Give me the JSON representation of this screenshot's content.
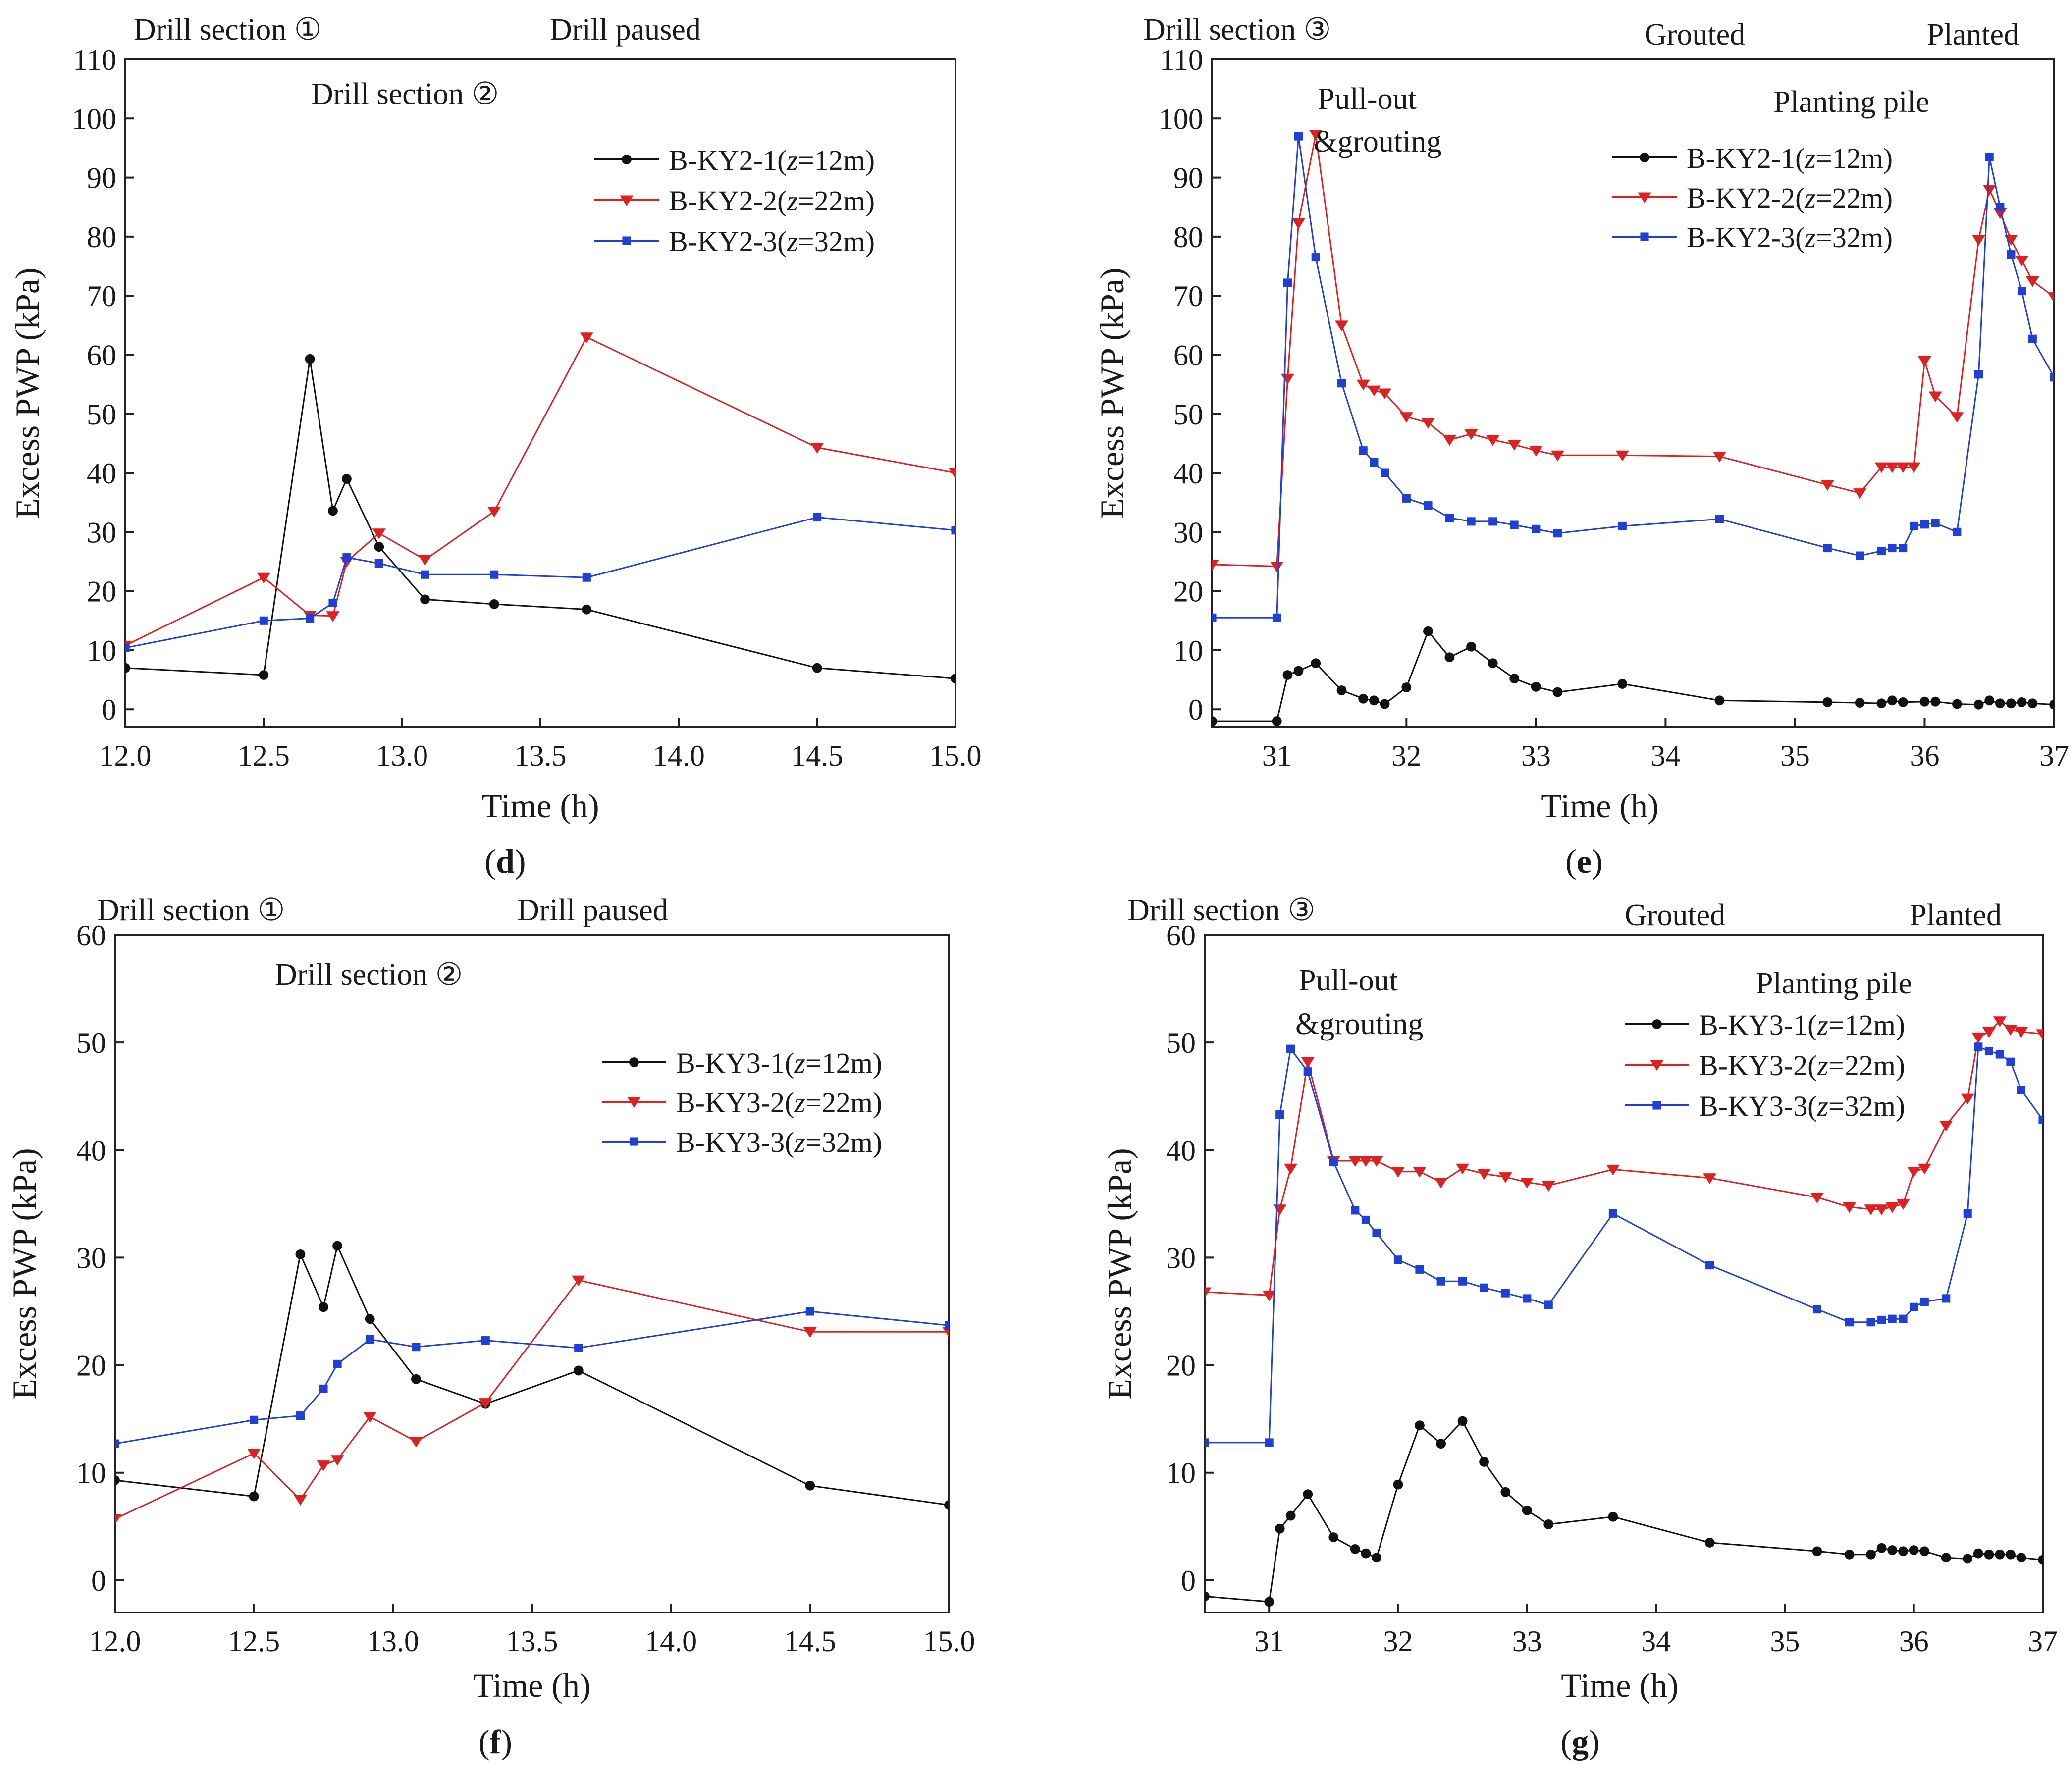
{
  "chart_data": [
    {
      "type": "line",
      "panel_label": "d",
      "xlabel": "Time (h)",
      "ylabel": "Excess PWP (kPa)",
      "xlim": [
        12.0,
        15.0
      ],
      "ylim": [
        -3,
        110
      ],
      "xticks": [
        "12.0",
        "12.5",
        "13.0",
        "13.5",
        "14.0",
        "14.5",
        "15.0"
      ],
      "yticks": [
        "0",
        "10",
        "20",
        "30",
        "40",
        "50",
        "60",
        "70",
        "80",
        "90",
        "100",
        "110"
      ],
      "annotations": [
        "Drill section ①",
        "Drill paused",
        "Drill section ②"
      ],
      "legend_position": "upper-right",
      "series": [
        {
          "name": "B-KY2-1",
          "depth_label": "z",
          "depth_value": "=12m",
          "color": "#111111",
          "marker": "circle",
          "x": [
            12.0,
            12.5,
            12.667,
            12.75,
            12.8,
            12.917,
            13.083,
            13.333,
            13.667,
            14.5,
            15.0
          ],
          "y": [
            7.0,
            5.8,
            59.3,
            33.6,
            39.0,
            27.5,
            18.6,
            17.8,
            16.9,
            7.0,
            5.2
          ]
        },
        {
          "name": "B-KY2-2",
          "depth_label": "z",
          "depth_value": "=22m",
          "color": "#e02020",
          "marker": "triangle-down",
          "x": [
            12.0,
            12.5,
            12.667,
            12.75,
            12.8,
            12.917,
            13.083,
            13.333,
            13.667,
            14.5,
            15.0
          ],
          "y": [
            10.8,
            22.3,
            15.9,
            15.8,
            25.0,
            29.8,
            25.3,
            33.5,
            63.0,
            44.3,
            40.0
          ]
        },
        {
          "name": "B-KY2-3",
          "depth_label": "z",
          "depth_value": "=32m",
          "color": "#1f3fd6",
          "marker": "square",
          "x": [
            12.0,
            12.5,
            12.667,
            12.75,
            12.8,
            12.917,
            13.083,
            13.333,
            13.667,
            14.5,
            15.0
          ],
          "y": [
            10.4,
            15.0,
            15.4,
            18.0,
            25.7,
            24.7,
            22.8,
            22.8,
            22.3,
            32.5,
            30.3
          ]
        }
      ]
    },
    {
      "type": "line",
      "panel_label": "e",
      "xlabel": "Time (h)",
      "ylabel": "Excess PWP (kPa)",
      "xlim": [
        30.5,
        37.0
      ],
      "ylim": [
        -3,
        110
      ],
      "xticks": [
        "31",
        "32",
        "33",
        "34",
        "35",
        "36",
        "37"
      ],
      "yticks": [
        "0",
        "10",
        "20",
        "30",
        "40",
        "50",
        "60",
        "70",
        "80",
        "90",
        "100",
        "110"
      ],
      "annotations": [
        "Drill section ③",
        "Grouted",
        "Planted",
        "Pull-out",
        "&grouting",
        "Planting pile"
      ],
      "legend_position": "upper-right",
      "series": [
        {
          "name": "B-KY2-1",
          "depth_label": "z",
          "depth_value": "=12m",
          "color": "#111111",
          "marker": "circle",
          "x": [
            30.5,
            31.0,
            31.083,
            31.167,
            31.3,
            31.5,
            31.667,
            31.75,
            31.833,
            32.0,
            32.167,
            32.333,
            32.5,
            32.667,
            32.833,
            33.0,
            33.167,
            33.667,
            34.417,
            35.25,
            35.5,
            35.667,
            35.75,
            35.833,
            36.0,
            36.083,
            36.25,
            36.417,
            36.5,
            36.583,
            36.667,
            36.75,
            36.833,
            37.0
          ],
          "y": [
            -2.0,
            -2.0,
            5.8,
            6.5,
            7.8,
            3.2,
            1.8,
            1.5,
            0.9,
            3.7,
            13.2,
            8.8,
            10.6,
            7.8,
            5.2,
            3.8,
            2.9,
            4.3,
            1.5,
            1.2,
            1.1,
            1.0,
            1.5,
            1.2,
            1.3,
            1.3,
            0.9,
            0.8,
            1.5,
            1.0,
            1.0,
            1.2,
            1.0,
            0.8
          ]
        },
        {
          "name": "B-KY2-2",
          "depth_label": "z",
          "depth_value": "=22m",
          "color": "#e02020",
          "marker": "triangle-down",
          "x": [
            30.5,
            31.0,
            31.083,
            31.167,
            31.3,
            31.5,
            31.667,
            31.75,
            31.833,
            32.0,
            32.167,
            32.333,
            32.5,
            32.667,
            32.833,
            33.0,
            33.167,
            33.667,
            34.417,
            35.25,
            35.5,
            35.667,
            35.75,
            35.833,
            35.917,
            36.0,
            36.083,
            36.25,
            36.417,
            36.5,
            36.583,
            36.667,
            36.75,
            36.833,
            37.0
          ],
          "y": [
            24.5,
            24.2,
            56.0,
            82.3,
            97.3,
            65.0,
            55.0,
            54.0,
            53.5,
            49.5,
            48.5,
            45.6,
            46.6,
            45.6,
            44.8,
            43.8,
            43.0,
            43.0,
            42.8,
            38.0,
            36.6,
            41.0,
            41.0,
            41.0,
            41.0,
            59.0,
            53.0,
            49.5,
            79.5,
            88.0,
            84.0,
            79.5,
            76.0,
            72.5,
            69.8
          ]
        },
        {
          "name": "B-KY2-3",
          "depth_label": "z",
          "depth_value": "=32m",
          "color": "#1f3fd6",
          "marker": "square",
          "x": [
            30.5,
            31.0,
            31.083,
            31.167,
            31.3,
            31.5,
            31.667,
            31.75,
            31.833,
            32.0,
            32.167,
            32.333,
            32.5,
            32.667,
            32.833,
            33.0,
            33.167,
            33.667,
            34.417,
            35.25,
            35.5,
            35.667,
            35.75,
            35.833,
            35.917,
            36.0,
            36.083,
            36.25,
            36.417,
            36.5,
            36.583,
            36.667,
            36.75,
            36.833,
            37.0
          ],
          "y": [
            15.5,
            15.5,
            72.2,
            97.0,
            76.5,
            55.2,
            43.8,
            41.8,
            40.0,
            35.7,
            34.5,
            32.4,
            31.8,
            31.8,
            31.2,
            30.5,
            29.8,
            31.0,
            32.2,
            27.3,
            26.0,
            26.8,
            27.3,
            27.3,
            31.0,
            31.3,
            31.5,
            30.0,
            56.7,
            93.5,
            85.0,
            77.0,
            70.8,
            62.7,
            56.2
          ]
        }
      ]
    },
    {
      "type": "line",
      "panel_label": "f",
      "xlabel": "Time (h)",
      "ylabel": "Excess PWP (kPa)",
      "xlim": [
        12.0,
        15.0
      ],
      "ylim": [
        -3,
        60
      ],
      "xticks": [
        "12.0",
        "12.5",
        "13.0",
        "13.5",
        "14.0",
        "14.5",
        "15.0"
      ],
      "yticks": [
        "0",
        "10",
        "20",
        "30",
        "40",
        "50",
        "60"
      ],
      "annotations": [
        "Drill section ①",
        "Drill paused",
        "Drill section ②"
      ],
      "legend_position": "right",
      "series": [
        {
          "name": "B-KY3-1",
          "depth_label": "z",
          "depth_value": "=12m",
          "color": "#111111",
          "marker": "circle",
          "x": [
            12.0,
            12.5,
            12.667,
            12.75,
            12.8,
            12.917,
            13.083,
            13.333,
            13.667,
            14.5,
            15.0
          ],
          "y": [
            9.3,
            7.8,
            30.3,
            25.4,
            31.1,
            24.3,
            18.7,
            16.4,
            19.5,
            8.8,
            7.0
          ]
        },
        {
          "name": "B-KY3-2",
          "depth_label": "z",
          "depth_value": "=22m",
          "color": "#e02020",
          "marker": "triangle-down",
          "x": [
            12.0,
            12.5,
            12.667,
            12.75,
            12.8,
            12.917,
            13.083,
            13.333,
            13.667,
            14.5,
            15.0
          ],
          "y": [
            5.7,
            11.8,
            7.5,
            10.7,
            11.2,
            15.2,
            12.9,
            16.5,
            27.9,
            23.1,
            23.1
          ]
        },
        {
          "name": "B-KY3-3",
          "depth_label": "z",
          "depth_value": "=32m",
          "color": "#1f3fd6",
          "marker": "square",
          "x": [
            12.0,
            12.5,
            12.667,
            12.75,
            12.8,
            12.917,
            13.083,
            13.333,
            13.667,
            14.5,
            15.0
          ],
          "y": [
            12.7,
            14.9,
            15.3,
            17.8,
            20.1,
            22.4,
            21.7,
            22.3,
            21.6,
            25.0,
            23.7
          ]
        }
      ]
    },
    {
      "type": "line",
      "panel_label": "g",
      "xlabel": "Time (h)",
      "ylabel": "Excess PWP (kPa)",
      "xlim": [
        30.5,
        37.0
      ],
      "ylim": [
        -3,
        60
      ],
      "xticks": [
        "31",
        "32",
        "33",
        "34",
        "35",
        "36",
        "37"
      ],
      "yticks": [
        "0",
        "10",
        "20",
        "30",
        "40",
        "50",
        "60"
      ],
      "annotations": [
        "Drill section ③",
        "Grouted",
        "Planted",
        "Pull-out",
        "&grouting",
        "Planting pile"
      ],
      "legend_position": "upper-right",
      "series": [
        {
          "name": "B-KY3-1",
          "depth_label": "z",
          "depth_value": "=12m",
          "color": "#111111",
          "marker": "circle",
          "x": [
            30.5,
            31.0,
            31.083,
            31.167,
            31.3,
            31.5,
            31.667,
            31.75,
            31.833,
            32.0,
            32.167,
            32.333,
            32.5,
            32.667,
            32.833,
            33.0,
            33.167,
            33.667,
            34.417,
            35.25,
            35.5,
            35.667,
            35.75,
            35.833,
            35.917,
            36.0,
            36.083,
            36.25,
            36.417,
            36.5,
            36.583,
            36.667,
            36.75,
            36.833,
            37.0
          ],
          "y": [
            -1.5,
            -2.0,
            4.8,
            6.0,
            8.0,
            4.0,
            2.9,
            2.5,
            2.1,
            8.9,
            14.4,
            12.7,
            14.8,
            11.0,
            8.2,
            6.5,
            5.2,
            5.9,
            3.5,
            2.7,
            2.4,
            2.4,
            3.0,
            2.8,
            2.7,
            2.8,
            2.7,
            2.1,
            2.0,
            2.5,
            2.4,
            2.4,
            2.4,
            2.1,
            1.9
          ]
        },
        {
          "name": "B-KY3-2",
          "depth_label": "z",
          "depth_value": "=22m",
          "color": "#e02020",
          "marker": "triangle-down",
          "x": [
            30.5,
            31.0,
            31.083,
            31.167,
            31.3,
            31.5,
            31.667,
            31.75,
            31.833,
            32.0,
            32.167,
            32.333,
            32.5,
            32.667,
            32.833,
            33.0,
            33.167,
            33.667,
            34.417,
            35.25,
            35.5,
            35.667,
            35.75,
            35.833,
            35.917,
            36.0,
            36.083,
            36.25,
            36.417,
            36.5,
            36.583,
            36.667,
            36.75,
            36.833,
            37.0
          ],
          "y": [
            26.8,
            26.5,
            34.5,
            38.3,
            48.2,
            39.0,
            39.0,
            39.0,
            39.0,
            38.0,
            38.0,
            37.0,
            38.3,
            37.8,
            37.5,
            37.0,
            36.7,
            38.2,
            37.4,
            35.6,
            34.7,
            34.5,
            34.5,
            34.7,
            35.0,
            38.0,
            38.3,
            42.3,
            44.8,
            50.5,
            51.0,
            52.0,
            51.2,
            51.0,
            50.8
          ]
        },
        {
          "name": "B-KY3-3",
          "depth_label": "z",
          "depth_value": "=32m",
          "color": "#1f3fd6",
          "marker": "square",
          "x": [
            30.5,
            31.0,
            31.083,
            31.167,
            31.3,
            31.5,
            31.667,
            31.75,
            31.833,
            32.0,
            32.167,
            32.333,
            32.5,
            32.667,
            32.833,
            33.0,
            33.167,
            33.667,
            34.417,
            35.25,
            35.5,
            35.667,
            35.75,
            35.833,
            35.917,
            36.0,
            36.083,
            36.25,
            36.417,
            36.5,
            36.583,
            36.667,
            36.75,
            36.833,
            37.0
          ],
          "y": [
            12.8,
            12.8,
            43.3,
            49.4,
            47.3,
            38.9,
            34.4,
            33.5,
            32.3,
            29.8,
            28.9,
            27.8,
            27.8,
            27.2,
            26.7,
            26.2,
            25.6,
            34.1,
            29.3,
            25.2,
            24.0,
            24.0,
            24.2,
            24.3,
            24.3,
            25.4,
            25.9,
            26.2,
            34.1,
            49.6,
            49.2,
            48.9,
            48.2,
            45.6,
            42.8
          ]
        }
      ]
    }
  ]
}
